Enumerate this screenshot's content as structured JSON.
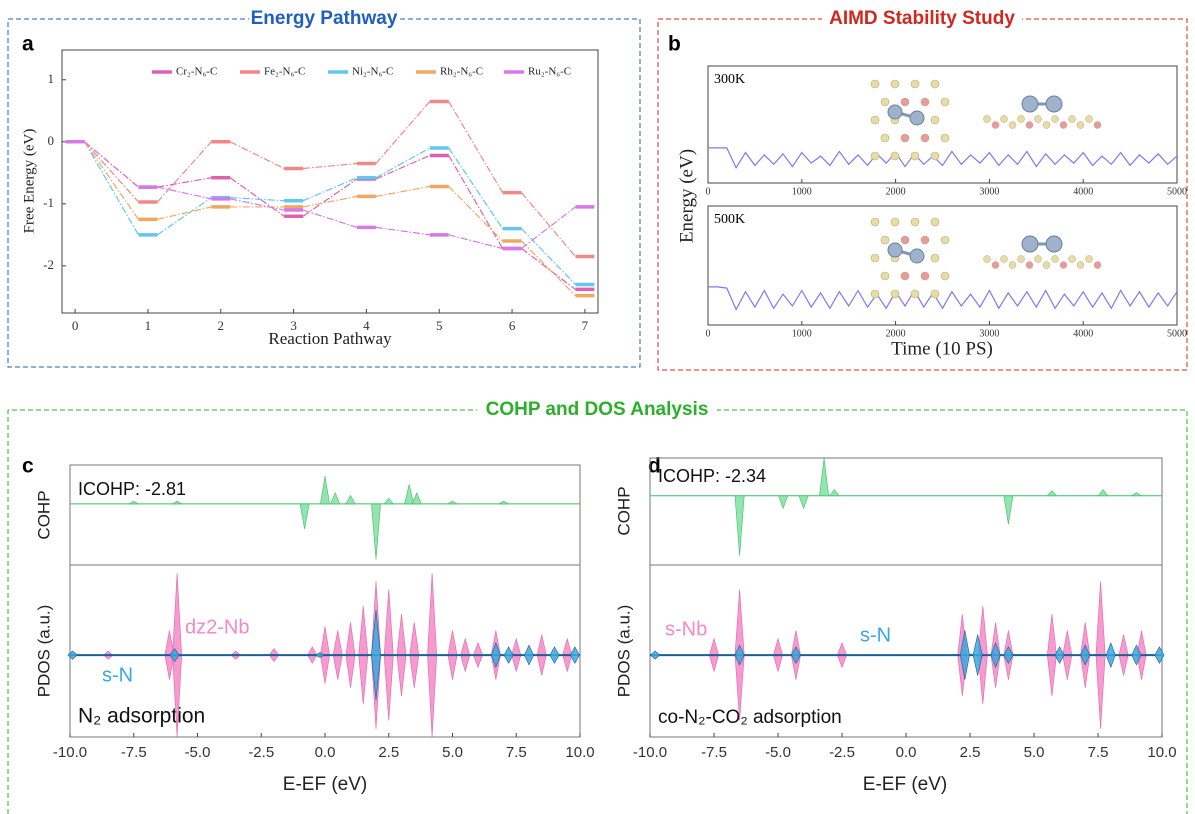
{
  "sections": [
    {
      "title": "Energy Pathway",
      "color": "#1f5fbf"
    },
    {
      "title": "AIMD Stability Study",
      "color": "#d0281e"
    },
    {
      "title": "COHP and DOS Analysis",
      "color": "#2ab02a"
    }
  ],
  "panel_labels": [
    "a",
    "b",
    "c",
    "d"
  ],
  "chart_data": [
    {
      "type": "line",
      "steps": true,
      "xlabel": "Reaction Pathway",
      "ylabel": "Free Energy (eV)",
      "x": [
        0,
        1,
        2,
        3,
        4,
        5,
        6,
        7
      ],
      "xlim": [
        -0.18,
        7.18
      ],
      "xticks": [
        0,
        1,
        2,
        3,
        4,
        5,
        6,
        7
      ],
      "ylim": [
        -2.76,
        1.48
      ],
      "yticks": [
        -2,
        -1,
        0,
        1
      ],
      "legend": "top",
      "series": [
        {
          "name": "Cr₂-N₆-C",
          "color": "#e060b0",
          "values": [
            0,
            -0.73,
            -0.58,
            -1.2,
            -0.6,
            -0.22,
            -1.72,
            -2.38
          ]
        },
        {
          "name": "Fe₂-N₆-C",
          "color": "#f08888",
          "values": [
            0,
            -0.97,
            0,
            -0.43,
            -0.35,
            0.65,
            -0.82,
            -1.85
          ]
        },
        {
          "name": "Ni₂-N₆-C",
          "color": "#60c8f0",
          "values": [
            0,
            -1.5,
            -0.9,
            -0.95,
            -0.58,
            -0.1,
            -1.4,
            -2.3
          ]
        },
        {
          "name": "Rh₂-N₆-C",
          "color": "#f0a860",
          "values": [
            0,
            -1.25,
            -1.05,
            -1.05,
            -0.88,
            -0.72,
            -1.6,
            -2.48
          ]
        },
        {
          "name": "Ru₂-N₆-C",
          "color": "#d878e8",
          "values": [
            0,
            -0.73,
            -0.92,
            -1.1,
            -1.38,
            -1.5,
            -1.72,
            -1.05
          ]
        }
      ]
    },
    {
      "type": "line",
      "label": "300K",
      "ylabel": "Energy (eV)",
      "x": [
        0,
        100,
        200,
        300,
        400,
        500,
        600,
        700,
        800,
        900,
        1000,
        1100,
        1200,
        1300,
        1400,
        1500,
        1600,
        1700,
        1800,
        1900,
        2000,
        2100,
        2200,
        2300,
        2400,
        2500,
        2600,
        2700,
        2800,
        2900,
        3000,
        3100,
        3200,
        3300,
        3400,
        3500,
        3600,
        3700,
        3800,
        3900,
        4000,
        4100,
        4200,
        4300,
        4400,
        4500,
        4600,
        4700,
        4800,
        4900,
        5000
      ],
      "xlim": [
        0,
        5000
      ],
      "xticks": [
        0,
        1000,
        2000,
        3000,
        4000,
        5000
      ],
      "ylim": [
        0,
        10
      ],
      "series": [
        {
          "color": "#7b7bf0",
          "values": [
            3.0,
            3.0,
            3.0,
            1.3,
            2.6,
            1.5,
            2.4,
            1.6,
            2.5,
            1.4,
            2.6,
            1.7,
            2.3,
            1.5,
            2.7,
            1.6,
            2.4,
            1.5,
            2.5,
            1.7,
            2.6,
            1.4,
            2.5,
            1.6,
            2.3,
            1.5,
            2.7,
            1.6,
            2.4,
            1.7,
            2.6,
            1.5,
            2.4,
            1.6,
            2.7,
            1.4,
            2.5,
            1.6,
            2.4,
            1.7,
            2.6,
            1.5,
            2.3,
            1.6,
            2.6,
            1.5,
            2.4,
            1.7,
            2.5,
            1.6,
            2.3
          ]
        }
      ]
    },
    {
      "type": "line",
      "label": "500K",
      "xlabel": "Time (10 PS)",
      "x": [
        0,
        100,
        200,
        300,
        400,
        500,
        600,
        700,
        800,
        900,
        1000,
        1100,
        1200,
        1300,
        1400,
        1500,
        1600,
        1700,
        1800,
        1900,
        2000,
        2100,
        2200,
        2300,
        2400,
        2500,
        2600,
        2700,
        2800,
        2900,
        3000,
        3100,
        3200,
        3300,
        3400,
        3500,
        3600,
        3700,
        3800,
        3900,
        4000,
        4100,
        4200,
        4300,
        4400,
        4500,
        4600,
        4700,
        4800,
        4900,
        5000
      ],
      "xlim": [
        0,
        5000
      ],
      "xticks": [
        0,
        1000,
        2000,
        3000,
        4000,
        5000
      ],
      "ylim": [
        0,
        10
      ],
      "series": [
        {
          "color": "#7b7bf0",
          "values": [
            3.2,
            3.2,
            3.1,
            1.3,
            2.8,
            1.5,
            2.9,
            1.4,
            2.6,
            1.6,
            2.9,
            1.5,
            2.7,
            1.4,
            2.8,
            1.6,
            2.9,
            1.5,
            2.6,
            1.4,
            2.8,
            1.6,
            2.9,
            1.5,
            2.7,
            1.4,
            2.8,
            1.6,
            2.6,
            1.5,
            2.9,
            1.4,
            2.7,
            1.6,
            2.8,
            1.5,
            2.9,
            1.4,
            2.6,
            1.6,
            2.8,
            1.5,
            2.7,
            1.4,
            2.9,
            1.6,
            2.8,
            1.5,
            2.7,
            1.6,
            2.8
          ]
        }
      ]
    },
    {
      "type": "spike",
      "ylabel": "COHP",
      "annotation": "ICOHP: -2.81",
      "xlim": [
        -10,
        10
      ],
      "ylim": [
        -1.1,
        0.7
      ],
      "series": [
        {
          "color": "#7fe0a0",
          "x": [
            -7.5,
            -5.8,
            -0.8,
            0.0,
            0.4,
            1.0,
            2.0,
            2.5,
            3.3,
            3.6,
            5.0,
            7.0
          ],
          "values": [
            0.05,
            0.05,
            -0.45,
            0.5,
            0.2,
            0.15,
            -1.0,
            0.1,
            0.35,
            0.2,
            0.05,
            0.05
          ]
        }
      ]
    },
    {
      "type": "spike",
      "mirrored": true,
      "ylabel": "PDOS (a.u.)",
      "xlabel": "E-EF (eV)",
      "annotation": "N₂ adsorption",
      "xlim": [
        -10,
        10
      ],
      "ylim": [
        -1,
        1.1
      ],
      "xticks": [
        {
          "value": -10,
          "label": "-10.0"
        },
        -7.5,
        {
          "value": -5,
          "label": "-5.0"
        },
        -2.5,
        {
          "value": 0,
          "label": "0.0"
        },
        2.5,
        {
          "value": 5,
          "label": "5.0"
        },
        7.5,
        {
          "value": 10,
          "label": "10.0"
        }
      ],
      "series": [
        {
          "name": "dz2-Nb",
          "color": "#f488c8",
          "x": [
            -8.5,
            -6.1,
            -5.8,
            -3.5,
            -2.0,
            -0.5,
            0.0,
            0.5,
            1.0,
            1.5,
            2.0,
            2.5,
            3.0,
            3.5,
            4.2,
            5.0,
            5.5,
            6.0,
            6.7,
            7.5,
            8.5,
            9.5
          ],
          "values": [
            0.05,
            0.3,
            1.0,
            0.05,
            0.08,
            0.1,
            0.35,
            0.3,
            0.4,
            0.6,
            0.9,
            0.8,
            0.5,
            0.4,
            1.0,
            0.3,
            0.2,
            0.15,
            0.3,
            0.2,
            0.25,
            0.2
          ]
        },
        {
          "name": "s-N",
          "color": "#3aa8e0",
          "x": [
            -9.9,
            -5.9,
            -0.2,
            2.0,
            6.7,
            7.2,
            8.0,
            9.0,
            9.8
          ],
          "values": [
            0.05,
            0.08,
            0.03,
            0.55,
            0.15,
            0.1,
            0.12,
            0.1,
            0.1
          ]
        }
      ]
    },
    {
      "type": "spike",
      "ylabel": "COHP",
      "annotation": "ICOHP: -2.34",
      "xlim": [
        -10,
        10
      ],
      "ylim": [
        -1.1,
        0.6
      ],
      "series": [
        {
          "color": "#7fe0a0",
          "x": [
            -6.5,
            -4.8,
            -4.0,
            -3.2,
            -2.8,
            4.0,
            5.7,
            7.7,
            9.0
          ],
          "values": [
            -0.95,
            -0.2,
            -0.2,
            0.6,
            0.1,
            -0.45,
            0.08,
            0.1,
            0.05
          ]
        }
      ]
    },
    {
      "type": "spike",
      "mirrored": true,
      "ylabel": "PDOS (a.u.)",
      "xlabel": "E-EF (eV)",
      "annotation": "co-N₂-CO₂ adsorption",
      "xlim": [
        -10,
        10
      ],
      "ylim": [
        -1,
        1.1
      ],
      "xticks": [
        {
          "value": -10,
          "label": "-10.0"
        },
        -7.5,
        {
          "value": -5,
          "label": "-5.0"
        },
        -2.5,
        {
          "value": 0,
          "label": "0.0"
        },
        2.5,
        {
          "value": 5,
          "label": "5.0"
        },
        7.5,
        {
          "value": 10,
          "label": "10.0"
        }
      ],
      "series": [
        {
          "name": "s-Nb",
          "color": "#f488c8",
          "x": [
            -7.5,
            -6.5,
            -5.0,
            -4.3,
            -2.5,
            2.2,
            3.0,
            3.5,
            4.0,
            5.7,
            6.3,
            7.0,
            7.6,
            8.5,
            9.2
          ],
          "values": [
            0.2,
            0.8,
            0.2,
            0.3,
            0.15,
            0.5,
            0.6,
            0.4,
            0.3,
            0.5,
            0.3,
            0.4,
            0.9,
            0.25,
            0.3
          ]
        },
        {
          "name": "s-N",
          "color": "#3aa8e0",
          "x": [
            -9.8,
            -6.5,
            -4.3,
            2.3,
            2.8,
            3.5,
            4.0,
            6.0,
            7.0,
            8.0,
            9.0,
            9.9
          ],
          "values": [
            0.05,
            0.12,
            0.1,
            0.3,
            0.25,
            0.15,
            0.1,
            0.1,
            0.12,
            0.15,
            0.12,
            0.1
          ]
        }
      ]
    }
  ]
}
